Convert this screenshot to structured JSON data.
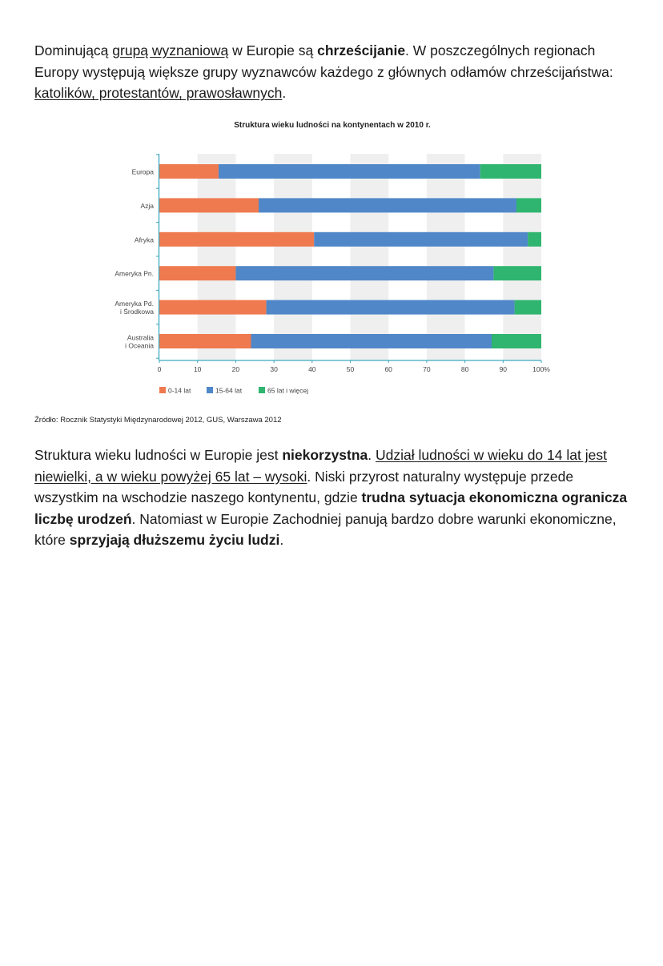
{
  "intro": {
    "s1": "Dominującą ",
    "s2": "grupą wyznaniową",
    "s3": " w Europie są ",
    "s4": "chrześcijanie",
    "s5": ". W poszczególnych regionach Europy występują większe grupy wyznawców każdego z głównych odłamów chrześcijaństwa: ",
    "s6": "katolików, protestantów, prawosławnych",
    "s7": "."
  },
  "chart_data": {
    "type": "bar",
    "stacked": true,
    "orientation": "horizontal",
    "title": "Struktura wieku ludności na kontynentach w 2010 r.",
    "categories": [
      "Europa",
      "Azja",
      "Afryka",
      "Ameryka Pn.",
      "Ameryka Pd.|i Środkowa",
      "Australia|i Oceania"
    ],
    "series": [
      {
        "name": "0-14 lat",
        "color": "#ef7a4f",
        "values": [
          15.5,
          26,
          40.5,
          20,
          28,
          24
        ]
      },
      {
        "name": "15-64 lat",
        "color": "#5087c8",
        "values": [
          68.5,
          67.5,
          56,
          67.5,
          65,
          63
        ]
      },
      {
        "name": "65 lat i więcej",
        "color": "#2fb56f",
        "values": [
          16,
          6.5,
          3.5,
          12.5,
          7,
          13
        ]
      }
    ],
    "xlim": [
      0,
      100
    ],
    "xticks": [
      "0",
      "10",
      "20",
      "30",
      "40",
      "50",
      "60",
      "70",
      "80",
      "90",
      "100%"
    ],
    "legend_position": "bottom-left",
    "grid": "alternating vertical bands"
  },
  "source": "Źródło: Rocznik Statystyki Międzynarodowej 2012, GUS, Warszawa 2012",
  "outro": {
    "s1": "Struktura wieku ludności w Europie jest ",
    "s2": "niekorzystna",
    "s3": ". ",
    "s4": "Udział ludności w wieku do 14 lat jest niewielki, a w wieku powyżej 65 lat – wysoki",
    "s5": ". Niski przyrost naturalny występuje przede wszystkim na wschodzie naszego kontynentu, gdzie ",
    "s6": "trudna sytuacja ekonomiczna ogranicza liczbę urodzeń",
    "s7": ". Natomiast w Europie Zachodniej panują bardzo dobre warunki ekonomiczne, które ",
    "s8": "sprzyjają dłuższemu życiu ludzi",
    "s9": "."
  }
}
